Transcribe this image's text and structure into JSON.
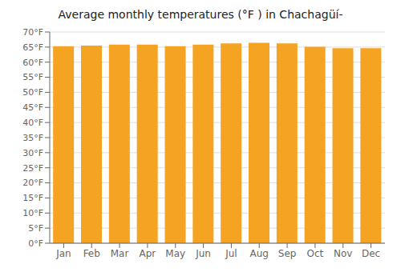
{
  "chart_data": {
    "type": "bar",
    "title": "Average monthly temperatures (°F ) in Chachagüí-",
    "categories": [
      "Jan",
      "Feb",
      "Mar",
      "Apr",
      "May",
      "Jun",
      "Jul",
      "Aug",
      "Sep",
      "Oct",
      "Nov",
      "Dec"
    ],
    "values": [
      65.3,
      65.5,
      65.8,
      65.8,
      65.3,
      65.8,
      66.2,
      66.4,
      66.2,
      65.1,
      64.6,
      64.6
    ],
    "color": "#F5A323",
    "ylim": [
      0,
      70
    ],
    "yticks": [
      {
        "value": 0,
        "label": "0°F"
      },
      {
        "value": 5,
        "label": "5°F"
      },
      {
        "value": 10,
        "label": "10°F"
      },
      {
        "value": 15,
        "label": "15°F"
      },
      {
        "value": 20,
        "label": "20°F"
      },
      {
        "value": 25,
        "label": "25°F"
      },
      {
        "value": 30,
        "label": "30°F"
      },
      {
        "value": 35,
        "label": "35°F"
      },
      {
        "value": 40,
        "label": "40°F"
      },
      {
        "value": 45,
        "label": "45°F"
      },
      {
        "value": 50,
        "label": "50°F"
      },
      {
        "value": 55,
        "label": "55°F"
      },
      {
        "value": 60,
        "label": "60°F"
      },
      {
        "value": 65,
        "label": "65°F"
      },
      {
        "value": 70,
        "label": "70°F"
      }
    ],
    "grid": true
  }
}
